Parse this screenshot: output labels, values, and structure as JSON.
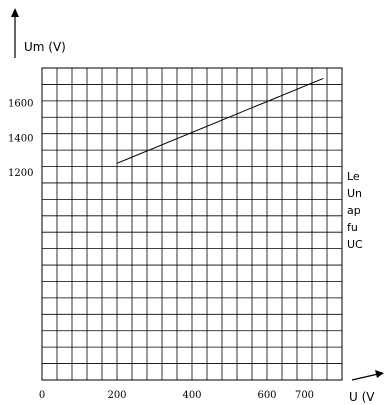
{
  "chart_data": {
    "type": "line",
    "ylabel": "Um (V)",
    "xlabel": "U (V",
    "x_tick_labels": [
      {
        "value": 0,
        "label": "0"
      },
      {
        "value": 200,
        "label": "200"
      },
      {
        "value": 400,
        "label": "400"
      },
      {
        "value": 600,
        "label": "600"
      },
      {
        "value": 700,
        "label": "700"
      }
    ],
    "y_tick_labels": [
      {
        "value": 1200,
        "label": "1200"
      },
      {
        "value": 1400,
        "label": "1400"
      },
      {
        "value": 1600,
        "label": "1600"
      }
    ],
    "xlim": [
      0,
      800
    ],
    "ylim": [
      0,
      1800
    ],
    "grid": true,
    "series": [
      {
        "x": [
          200,
          750
        ],
        "values": [
          1250,
          1740
        ]
      }
    ]
  },
  "side_note": {
    "lines": [
      "Le",
      "Un",
      "ap",
      "fu",
      "UC"
    ]
  }
}
